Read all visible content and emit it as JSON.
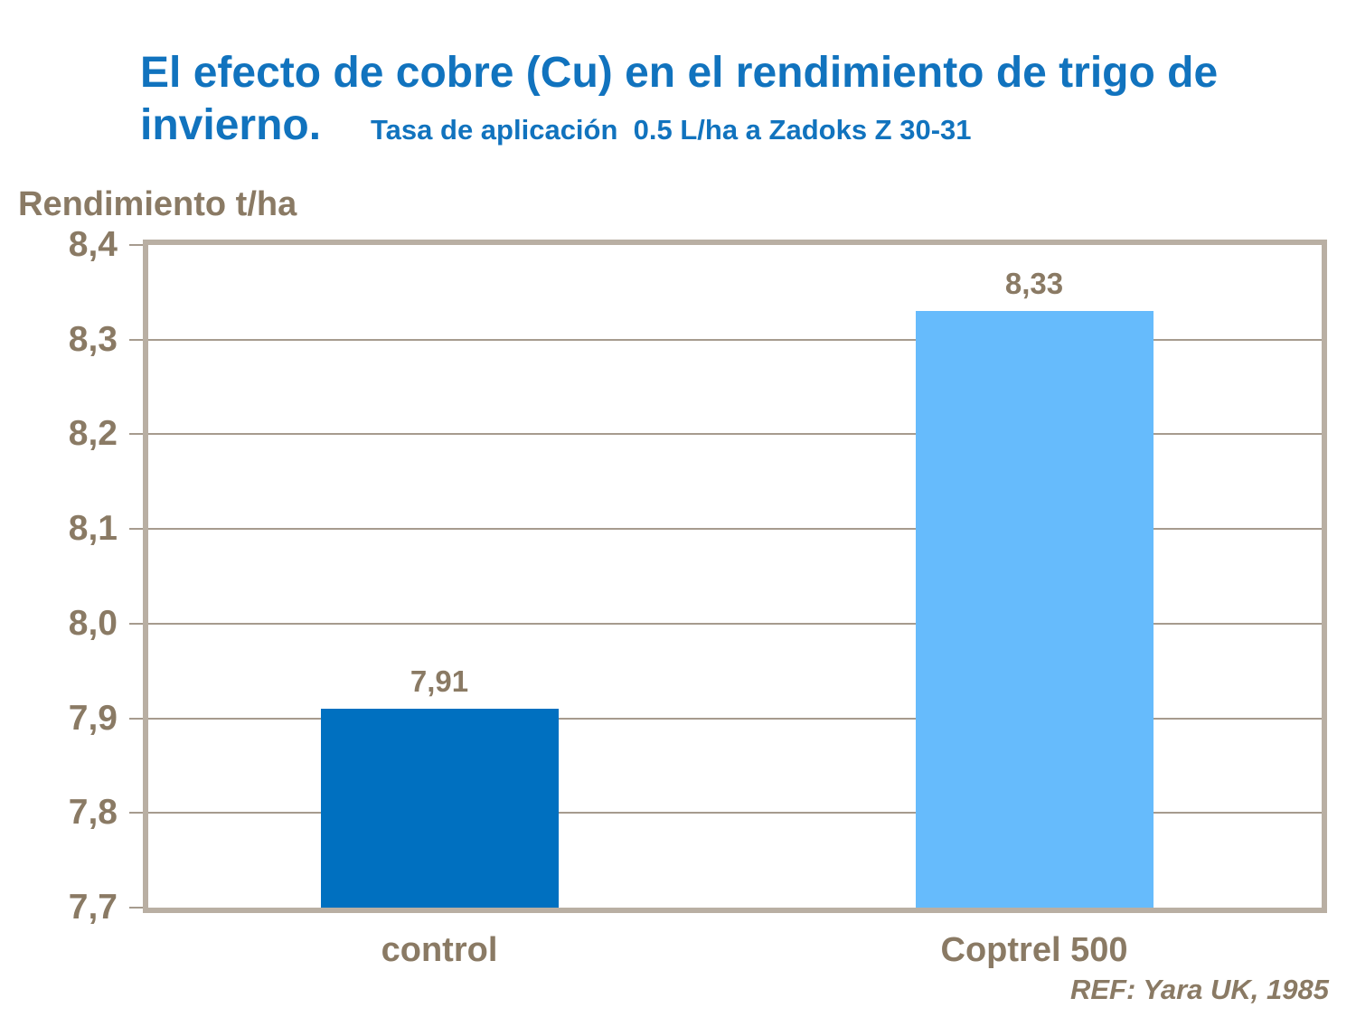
{
  "title": {
    "line1": "El efecto de cobre (Cu) en el rendimiento de trigo de",
    "line2": "invierno.",
    "subtitle": "Tasa de aplicación  0.5 L/ha a Zadoks Z 30-31"
  },
  "footer": "REF: Yara UK, 1985",
  "colors": {
    "title_blue": "#1173BE",
    "text_brown": "#8A7A64",
    "frame_tan": "#B9AFA3",
    "gridline": "#A69B8E",
    "bar_control": "#0070C0",
    "bar_coptrel": "#66BBFC",
    "background": "#FFFFFF"
  },
  "chart_data": {
    "type": "bar",
    "title": "El efecto de cobre (Cu) en el rendimiento de trigo de invierno.",
    "subtitle": "Tasa de aplicación 0.5 L/ha a Zadoks Z 30-31",
    "ylabel": "Rendimiento t/ha",
    "xlabel": "",
    "categories": [
      "control",
      "Coptrel 500"
    ],
    "values": [
      7.91,
      8.33
    ],
    "value_labels": [
      "7,91",
      "8,33"
    ],
    "bar_colors": [
      "#0070C0",
      "#66BBFC"
    ],
    "ylim": [
      7.7,
      8.4
    ],
    "ytick_values": [
      8.4,
      8.3,
      8.2,
      8.1,
      8.0,
      7.9,
      7.8,
      7.7
    ],
    "ytick_labels": [
      "8,4",
      "8,3",
      "8,2",
      "8,1",
      "8,0",
      "7,9",
      "7,8",
      "7,7"
    ],
    "grid": true,
    "legend": false,
    "annotation": "REF: Yara UK, 1985"
  }
}
